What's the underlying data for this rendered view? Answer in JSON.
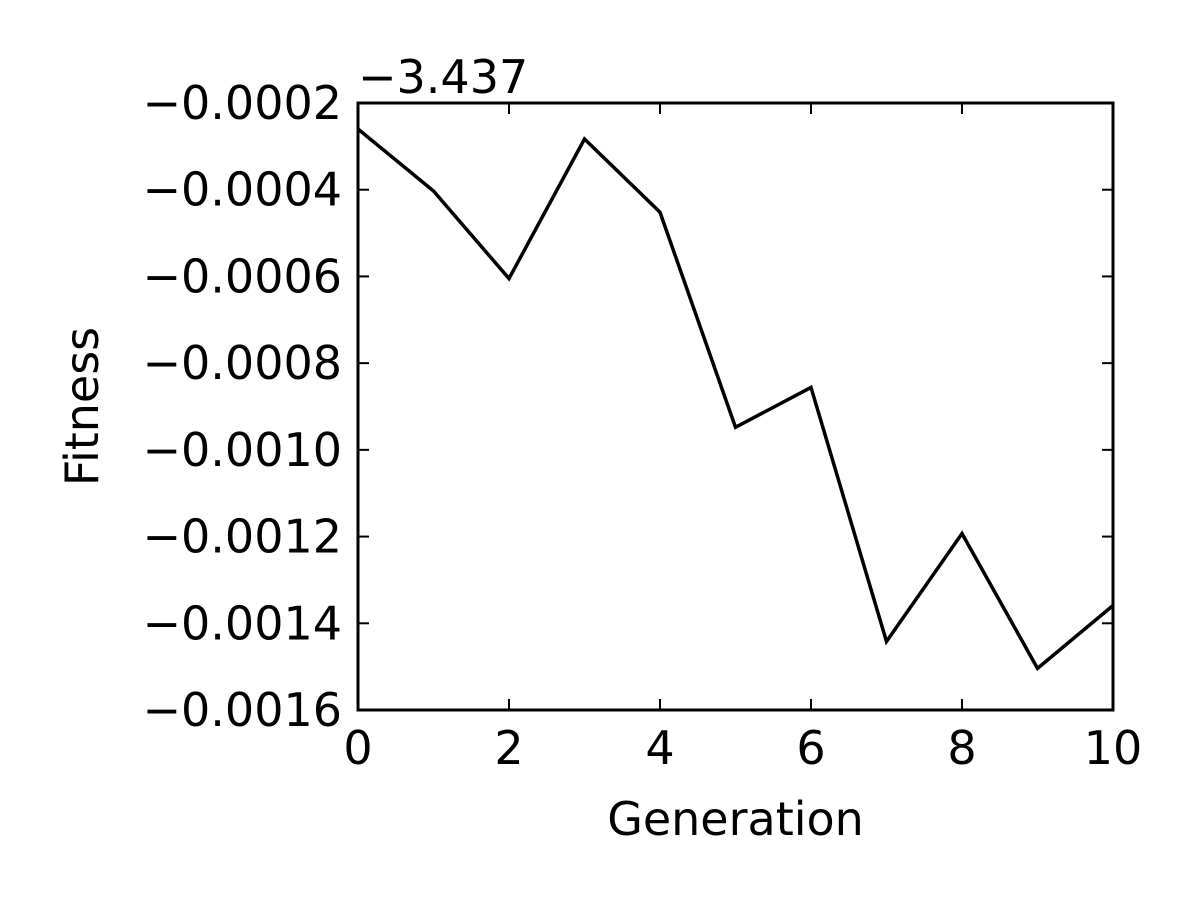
{
  "chart_data": {
    "type": "line",
    "title": "",
    "xlabel": "Generation",
    "ylabel": "Fitness",
    "offset_label": "−3.437",
    "offset": -3.437,
    "xlim": [
      0,
      10
    ],
    "ylim": [
      -0.0016,
      -0.0002
    ],
    "x_ticks": [
      0,
      2,
      4,
      6,
      8,
      10
    ],
    "x_tick_labels": [
      "0",
      "2",
      "4",
      "6",
      "8",
      "10"
    ],
    "y_ticks": [
      -0.0002,
      -0.0004,
      -0.0006,
      -0.0008,
      -0.001,
      -0.0012,
      -0.0014,
      -0.0016
    ],
    "y_tick_labels": [
      "−0.0002",
      "−0.0004",
      "−0.0006",
      "−0.0008",
      "−0.0010",
      "−0.0012",
      "−0.0014",
      "−0.0016"
    ],
    "grid": false,
    "legend": "none",
    "series": [
      {
        "color": "#000000",
        "x": [
          0,
          1,
          2,
          3,
          4,
          5,
          6,
          7,
          8,
          9,
          10
        ],
        "y": [
          -0.00026,
          -0.000403,
          -0.000605,
          -0.000283,
          -0.000452,
          -0.000948,
          -0.000856,
          -0.001442,
          -0.001193,
          -0.001504,
          -0.001359
        ]
      }
    ]
  }
}
